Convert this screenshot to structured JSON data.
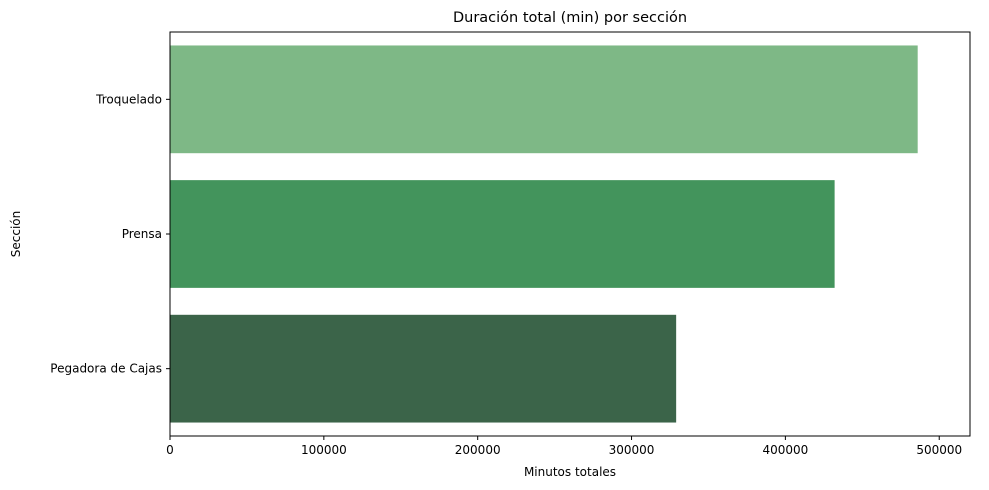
{
  "chart_data": {
    "type": "bar",
    "orientation": "horizontal",
    "title": "Duración total (min) por sección",
    "xlabel": "Minutos totales",
    "ylabel": "Sección",
    "categories": [
      "Troquelado",
      "Prensa",
      "Pegadora de Cajas"
    ],
    "values": [
      486000,
      432000,
      329000
    ],
    "colors": [
      "#7eb886",
      "#43945c",
      "#3b6449"
    ],
    "xlim": [
      0,
      520000
    ],
    "xticks": [
      0,
      100000,
      200000,
      300000,
      400000,
      500000
    ],
    "xtick_labels": [
      "0",
      "100000",
      "200000",
      "300000",
      "400000",
      "500000"
    ],
    "grid": false,
    "legend": "none"
  }
}
